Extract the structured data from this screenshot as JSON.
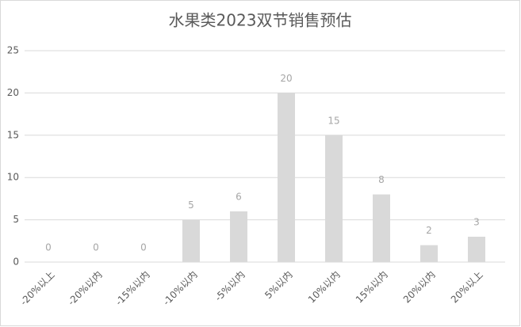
{
  "chart_data": {
    "type": "bar",
    "title": "水果类2023双节销售预估",
    "categories": [
      "-20%以上",
      "-20%以内",
      "-15%以内",
      "-10%以内",
      "-5%以内",
      "5%以内",
      "10%以内",
      "15%以内",
      "20%以内",
      "20%以上"
    ],
    "values": [
      0,
      0,
      0,
      5,
      6,
      20,
      15,
      8,
      2,
      3
    ],
    "color": "#d9d9d9",
    "ylim": [
      0,
      25
    ],
    "yticks": [
      0,
      5,
      10,
      15,
      20,
      25
    ],
    "grid": true
  }
}
